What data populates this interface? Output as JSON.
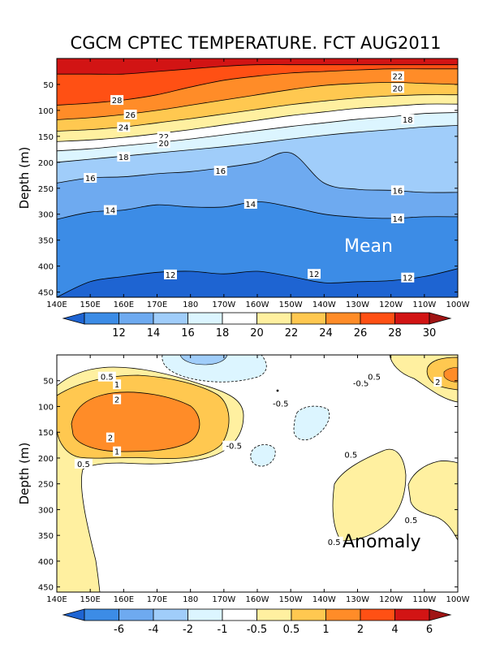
{
  "chart_data": [
    {
      "type": "contour",
      "title": "CGCM CPTEC TEMPERATURE. FCT AUG2011",
      "panel_label": "Mean",
      "ylabel": "Depth (m)",
      "xlabel": "",
      "x_ticks": [
        "140E",
        "150E",
        "160E",
        "170E",
        "180",
        "170W",
        "160W",
        "150W",
        "140W",
        "130W",
        "120W",
        "110W",
        "100W"
      ],
      "y_ticks": [
        50,
        100,
        150,
        200,
        250,
        300,
        350,
        400,
        450
      ],
      "ylim": [
        460,
        0
      ],
      "xlim_deg_east": [
        140,
        260
      ],
      "colorbar": {
        "ticks": [
          12,
          14,
          16,
          18,
          20,
          22,
          24,
          26,
          28,
          30
        ],
        "colors": [
          "#1e64d2",
          "#3c8ce6",
          "#6eaaf0",
          "#a0cdfa",
          "#dcf5ff",
          "#ffffff",
          "#fff0a0",
          "#ffc850",
          "#ff8c28",
          "#ff5014",
          "#d21414",
          "#a01414"
        ]
      },
      "contours": [
        {
          "level": 30,
          "depth": [
            30,
            30,
            30,
            25,
            20,
            15,
            12,
            12,
            12,
            12,
            12,
            12,
            12
          ]
        },
        {
          "level": 28,
          "depth": [
            90,
            86,
            80,
            70,
            55,
            42,
            34,
            28,
            25,
            22,
            20,
            20,
            20
          ]
        },
        {
          "level": 26,
          "depth": [
            118,
            114,
            108,
            100,
            90,
            80,
            70,
            60,
            52,
            48,
            46,
            48,
            50
          ]
        },
        {
          "level": 24,
          "depth": [
            140,
            137,
            132,
            124,
            116,
            107,
            98,
            89,
            82,
            76,
            72,
            70,
            70
          ]
        },
        {
          "level": 22,
          "depth": [
            160,
            157,
            152,
            145,
            137,
            128,
            119,
            110,
            103,
            96,
            92,
            88,
            88
          ]
        },
        {
          "level": 20,
          "depth": [
            178,
            174,
            168,
            162,
            155,
            147,
            139,
            131,
            124,
            117,
            112,
            106,
            104
          ]
        },
        {
          "level": 18,
          "depth": [
            200,
            194,
            188,
            182,
            176,
            170,
            163,
            155,
            148,
            142,
            137,
            132,
            129
          ]
        },
        {
          "level": 16,
          "depth": [
            240,
            230,
            228,
            222,
            218,
            210,
            200,
            182,
            240,
            252,
            254,
            258,
            258
          ]
        },
        {
          "level": 14,
          "depth": [
            310,
            296,
            292,
            282,
            286,
            286,
            276,
            286,
            300,
            306,
            308,
            305,
            305
          ]
        },
        {
          "level": 12,
          "depth": [
            460,
            430,
            420,
            412,
            410,
            415,
            410,
            420,
            432,
            430,
            428,
            420,
            405
          ]
        }
      ],
      "labels": [
        {
          "text": "28",
          "lon": 158,
          "depth": 80
        },
        {
          "text": "26",
          "lon": 162,
          "depth": 108
        },
        {
          "text": "24",
          "lon": 160,
          "depth": 132
        },
        {
          "text": "22",
          "lon": 172,
          "depth": 150
        },
        {
          "text": "20",
          "lon": 172,
          "depth": 163
        },
        {
          "text": "18",
          "lon": 160,
          "depth": 189
        },
        {
          "text": "22",
          "lon": 242,
          "depth": 34
        },
        {
          "text": "20",
          "lon": 242,
          "depth": 57
        },
        {
          "text": "18",
          "lon": 245,
          "depth": 117
        },
        {
          "text": "16",
          "lon": 150,
          "depth": 230
        },
        {
          "text": "16",
          "lon": 189,
          "depth": 216
        },
        {
          "text": "16",
          "lon": 242,
          "depth": 254
        },
        {
          "text": "14",
          "lon": 156,
          "depth": 292
        },
        {
          "text": "14",
          "lon": 198,
          "depth": 280
        },
        {
          "text": "14",
          "lon": 242,
          "depth": 308
        },
        {
          "text": "12",
          "lon": 174,
          "depth": 416
        },
        {
          "text": "12",
          "lon": 217,
          "depth": 415
        },
        {
          "text": "12",
          "lon": 245,
          "depth": 422
        }
      ]
    },
    {
      "type": "contour",
      "panel_label": "Anomaly",
      "ylabel": "Depth (m)",
      "xlabel": "",
      "x_ticks": [
        "140E",
        "150E",
        "160E",
        "170E",
        "180",
        "170W",
        "160W",
        "150W",
        "140W",
        "130W",
        "120W",
        "110W",
        "100W"
      ],
      "y_ticks": [
        50,
        100,
        150,
        200,
        250,
        300,
        350,
        400,
        450
      ],
      "ylim": [
        460,
        0
      ],
      "xlim_deg_east": [
        140,
        260
      ],
      "colorbar": {
        "ticks": [
          "-6",
          "-4",
          "-2",
          "-1",
          "-0.5",
          "0.5",
          "1",
          "2",
          "4",
          "6"
        ],
        "colors": [
          "#1e64d2",
          "#3c8ce6",
          "#6eaaf0",
          "#a0cdfa",
          "#dcf5ff",
          "#ffffff",
          "#fff0a0",
          "#ffc850",
          "#ff8c28",
          "#ff5014",
          "#d21414",
          "#a01414"
        ]
      },
      "labels": [
        {
          "text": "0.5",
          "lon": 155,
          "depth": 42
        },
        {
          "text": "1",
          "lon": 158,
          "depth": 57
        },
        {
          "text": "2",
          "lon": 158,
          "depth": 86
        },
        {
          "text": "2",
          "lon": 156,
          "depth": 160
        },
        {
          "text": "1",
          "lon": 158,
          "depth": 187
        },
        {
          "text": "0.5",
          "lon": 148,
          "depth": 211
        },
        {
          "text": "-0.5",
          "lon": 231,
          "depth": 54
        },
        {
          "text": "-0.5",
          "lon": 207,
          "depth": 94
        },
        {
          "text": "-0.5",
          "lon": 193,
          "depth": 176
        },
        {
          "text": "0.5",
          "lon": 235,
          "depth": 42
        },
        {
          "text": "2",
          "lon": 254,
          "depth": 52
        },
        {
          "text": "0.5",
          "lon": 228,
          "depth": 193
        },
        {
          "text": "0.5",
          "lon": 246,
          "depth": 320
        },
        {
          "text": "0.5",
          "lon": 223,
          "depth": 362
        }
      ]
    }
  ]
}
